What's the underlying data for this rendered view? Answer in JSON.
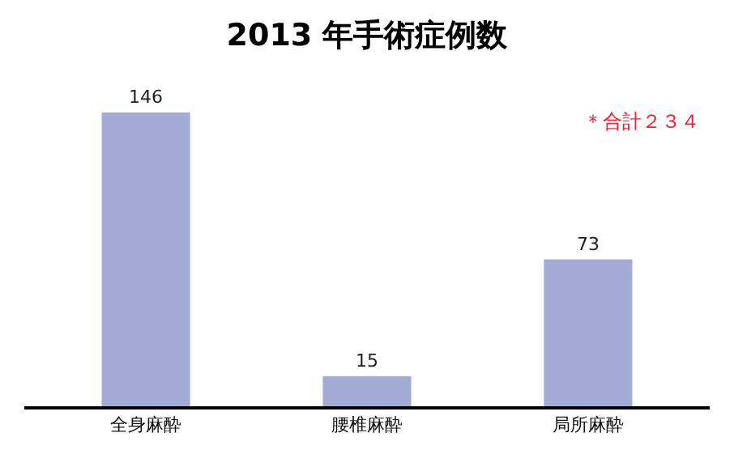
{
  "chart_data": {
    "type": "bar",
    "title": "2013 年手術症例数",
    "categories": [
      "全身麻酔",
      "腰椎麻酔",
      "局所麻酔"
    ],
    "values": [
      146,
      15,
      73
    ],
    "color": "#a3acd6",
    "data_labels": true,
    "annotations": [
      "＊合計２３４"
    ]
  }
}
